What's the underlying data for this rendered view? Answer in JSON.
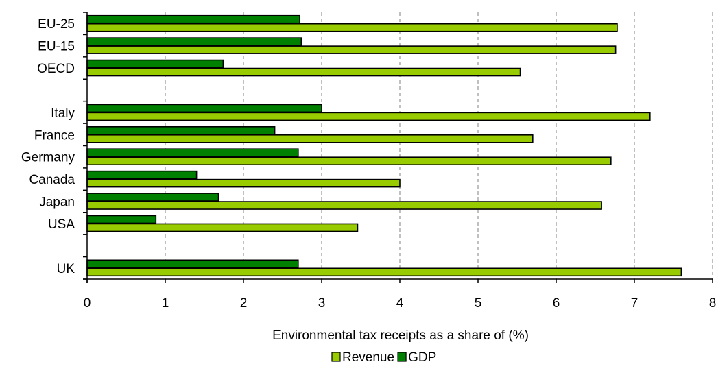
{
  "chart_data": {
    "type": "bar",
    "orientation": "horizontal",
    "title": "",
    "xlabel": "Environmental tax receipts as a share of (%)",
    "ylabel": "",
    "xlim": [
      0,
      8
    ],
    "xticks": [
      "0",
      "1",
      "2",
      "3",
      "4",
      "5",
      "6",
      "7",
      "8"
    ],
    "grid": "vertical dashed",
    "legend_position": "bottom",
    "categories": [
      "EU-25",
      "EU-15",
      "OECD",
      "",
      "Italy",
      "France",
      "Germany",
      "Canada",
      "Japan",
      "USA",
      "",
      "UK"
    ],
    "series": [
      {
        "name": "Revenue",
        "color": "#99cc00",
        "values": [
          6.78,
          6.76,
          5.54,
          null,
          7.2,
          5.7,
          6.7,
          4.0,
          6.58,
          3.46,
          null,
          7.6
        ]
      },
      {
        "name": "GDP",
        "color": "#008000",
        "values": [
          2.72,
          2.74,
          1.74,
          null,
          3.0,
          2.4,
          2.7,
          1.4,
          1.68,
          0.88,
          null,
          2.7
        ]
      }
    ]
  }
}
